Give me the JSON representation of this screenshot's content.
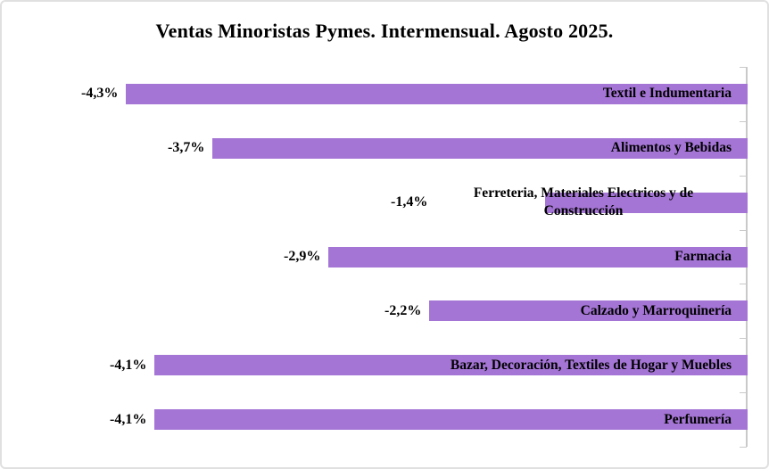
{
  "chart_data": {
    "type": "bar",
    "orientation": "horizontal",
    "title": "Ventas Minoristas Pymes. Intermensual. Agosto 2025.",
    "categories": [
      "Textil e Indumentaria",
      "Alimentos y Bebidas",
      "Ferreteria, Materiales Electricos y de Construcción",
      "Farmacia",
      "Calzado y Marroquinería",
      "Bazar, Decoración, Textiles de Hogar y Muebles",
      "Perfumería"
    ],
    "values": [
      -4.3,
      -3.7,
      -1.4,
      -2.9,
      -2.2,
      -4.1,
      -4.1
    ],
    "value_labels": [
      "-4,3%",
      "-3,7%",
      "-1,4%",
      "-2,9%",
      "-2,2%",
      "-4,1%",
      "-4,1%"
    ],
    "xlabel": "",
    "ylabel": "",
    "xlim": [
      -5,
      0
    ],
    "grid": false,
    "legend": false,
    "bar_color": "#a475d5",
    "axis_color": "#c9c9c9",
    "label_color": "#000000"
  }
}
